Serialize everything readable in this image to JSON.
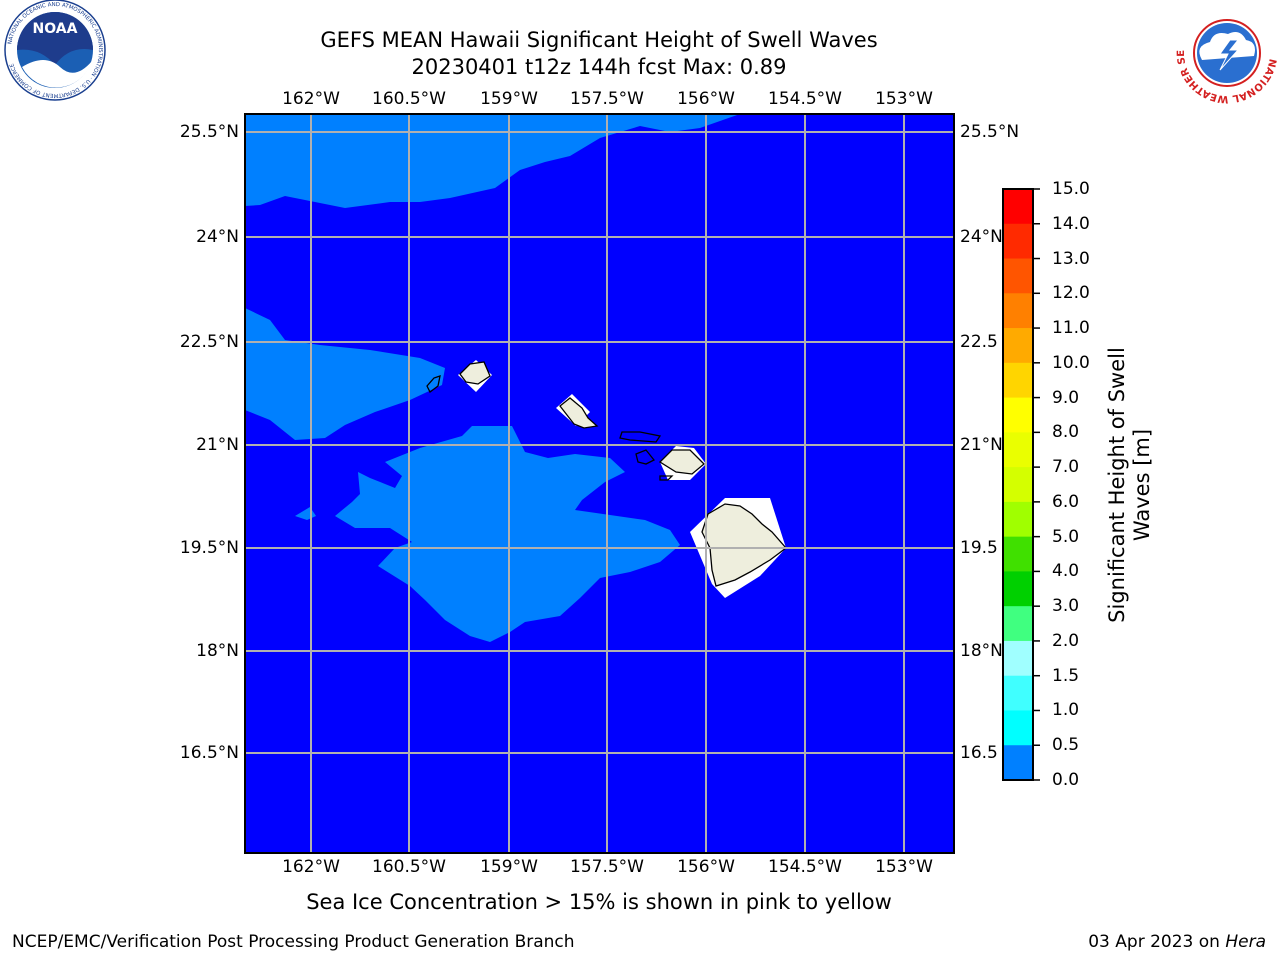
{
  "header": {
    "title_line1": "GEFS MEAN Hawaii Significant Height of Swell Waves",
    "title_line2": "20230401 t12z 144h fcst   Max: 0.89"
  },
  "map": {
    "lon_ticks": [
      "162°W",
      "160.5°W",
      "159°W",
      "157.5°W",
      "156°W",
      "154.5°W",
      "153°W"
    ],
    "lat_ticks": [
      "25.5°N",
      "24°N",
      "22.5°N",
      "21°N",
      "19.5°N",
      "18°N",
      "16.5°N"
    ],
    "lat_ticks_right": [
      "25.5°N",
      "24°N",
      "22.5",
      "21°N",
      "19.5",
      "18°N",
      "16.5"
    ],
    "colors": {
      "ocean_0_0_5": "#0000ff",
      "ocean_0_5_1": "#0080ff",
      "land": "#eeeedd",
      "grid": "#b0b0b0"
    }
  },
  "colorbar": {
    "label": "Significant Height of Swell Waves [m]",
    "ticks": [
      "15.0",
      "14.0",
      "13.0",
      "12.0",
      "11.0",
      "10.0",
      "9.0",
      "8.0",
      "7.0",
      "6.0",
      "5.0",
      "4.0",
      "3.0",
      "2.0",
      "1.5",
      "1.0",
      "0.5",
      "0.0"
    ],
    "colors": [
      "#ff0000",
      "#ff2a00",
      "#ff5500",
      "#ff8000",
      "#ffaa00",
      "#ffd500",
      "#ffff00",
      "#eaff00",
      "#d4ff00",
      "#a0ff00",
      "#40e000",
      "#00d000",
      "#40ff80",
      "#a0ffff",
      "#40ffff",
      "#00ffff",
      "#0080ff",
      "#0000ff"
    ]
  },
  "subtitle": "Sea Ice Concentration > 15% is shown in pink to yellow",
  "footer": {
    "left": "NCEP/EMC/Verification Post Processing Product Generation Branch",
    "right_date": "03 Apr 2023 on ",
    "right_host": "Hera"
  },
  "logos": {
    "noaa_text": "NOAA",
    "noaa_ring": "NATIONAL OCEANIC AND ATMOSPHERIC ADMINISTRATION · U.S. DEPARTMENT OF COMMERCE",
    "nws_ring": "NATIONAL WEATHER SERVICE"
  }
}
